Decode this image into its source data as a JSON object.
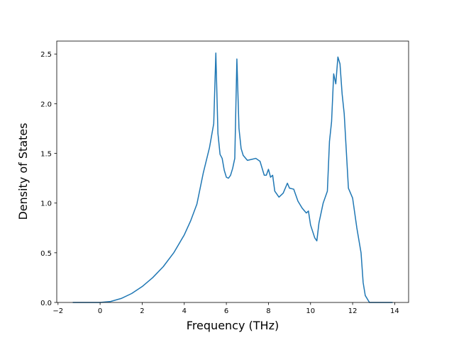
{
  "chart_data": {
    "type": "line",
    "xlabel": "Frequency (THz)",
    "ylabel": "Density of States",
    "xlim": [
      -2.06,
      14.66
    ],
    "ylim": [
      0,
      2.63
    ],
    "xticks": [
      {
        "value": -2,
        "label": "−2"
      },
      0,
      2,
      4,
      6,
      8,
      10,
      12,
      14
    ],
    "yticks": [
      {
        "value": 0,
        "label": "0.0"
      },
      0.5,
      {
        "value": 1,
        "label": "1.0"
      },
      1.5,
      {
        "value": 2,
        "label": "2.0"
      },
      2.5
    ],
    "grid": false,
    "series": [
      {
        "color": "#1f77b4",
        "x": [
          -1.3,
          -1.0,
          -0.5,
          0,
          0.5,
          1,
          1.5,
          2,
          2.5,
          3,
          3.5,
          4,
          4.3,
          4.6,
          4.9,
          5.2,
          5.4,
          5.5,
          5.6,
          5.7,
          5.8,
          5.9,
          6.0,
          6.1,
          6.2,
          6.3,
          6.4,
          6.5,
          6.6,
          6.7,
          6.8,
          7.0,
          7.2,
          7.4,
          7.6,
          7.8,
          7.9,
          8.0,
          8.1,
          8.2,
          8.3,
          8.5,
          8.7,
          8.9,
          9.0,
          9.2,
          9.4,
          9.6,
          9.8,
          9.9,
          10.0,
          10.2,
          10.3,
          10.4,
          10.6,
          10.8,
          10.9,
          11.0,
          11.1,
          11.2,
          11.3,
          11.4,
          11.5,
          11.6,
          11.8,
          12.0,
          12.2,
          12.4,
          12.5,
          12.6,
          12.8,
          13.5,
          13.9
        ],
        "values": [
          0,
          0,
          0,
          0,
          0.01,
          0.04,
          0.09,
          0.16,
          0.25,
          0.36,
          0.5,
          0.68,
          0.82,
          0.99,
          1.3,
          1.56,
          1.8,
          2.51,
          1.7,
          1.49,
          1.45,
          1.33,
          1.26,
          1.25,
          1.28,
          1.35,
          1.45,
          2.45,
          1.75,
          1.55,
          1.48,
          1.43,
          1.44,
          1.45,
          1.42,
          1.28,
          1.28,
          1.34,
          1.26,
          1.28,
          1.12,
          1.06,
          1.1,
          1.2,
          1.15,
          1.14,
          1.02,
          0.95,
          0.9,
          0.92,
          0.78,
          0.65,
          0.62,
          0.8,
          1.0,
          1.12,
          1.62,
          1.82,
          2.3,
          2.2,
          2.47,
          2.4,
          2.1,
          1.9,
          1.15,
          1.05,
          0.75,
          0.5,
          0.2,
          0.07,
          0.0,
          0,
          0
        ]
      }
    ]
  }
}
